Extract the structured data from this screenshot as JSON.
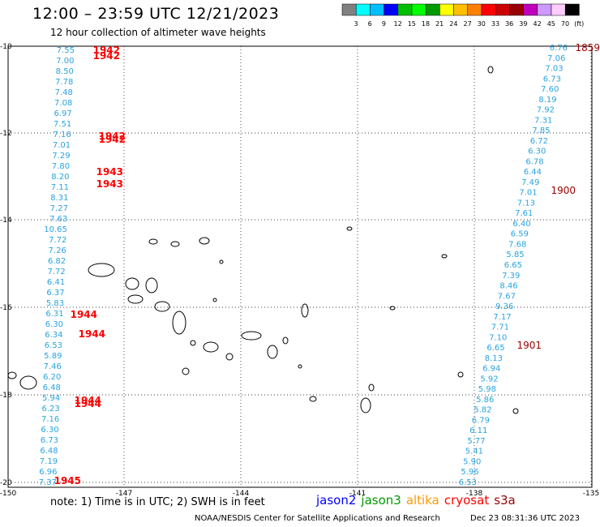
{
  "header": {
    "title": "12:00 – 23:59 UTC 12/21/2023",
    "subtitle": "12 hour collection of altimeter wave heights"
  },
  "colorbar": {
    "colors": [
      "#808080",
      "#00ffff",
      "#00bfff",
      "#0000ff",
      "#00bf00",
      "#00ff00",
      "#009900",
      "#ffff00",
      "#ffbf00",
      "#ff7f00",
      "#ff0000",
      "#cc0000",
      "#990000",
      "#bf00bf",
      "#cc99ff",
      "#ffccff",
      "#000000"
    ],
    "labels": [
      "3",
      "6",
      "9",
      "12",
      "15",
      "18",
      "21",
      "24",
      "27",
      "30",
      "33",
      "36",
      "39",
      "42",
      "45",
      "70",
      "(ft)"
    ]
  },
  "axes": {
    "lat_labels": [
      "-10",
      "-12",
      "-14",
      "-16",
      "-18",
      "-20"
    ],
    "lon_labels": [
      "-150",
      "-147",
      "-144",
      "-141",
      "-138",
      "-135"
    ]
  },
  "track_left": {
    "color": "#29a3e0",
    "values": [
      "7.55",
      "7.00",
      "8.50",
      "7.78",
      "7.48",
      "7.08",
      "6.97",
      "7.51",
      "7.16",
      "7.01",
      "7.29",
      "7.80",
      "8.20",
      "7.11",
      "8.31",
      "7.27",
      "7.63",
      "10.65",
      "7.72",
      "7.26",
      "6.82",
      "7.72",
      "6.41",
      "6.37",
      "5.83",
      "6.31",
      "6.30",
      "6.34",
      "6.53",
      "5.89",
      "7.46",
      "6.20",
      "6.48",
      "5.94",
      "6.23",
      "7.16",
      "6.30",
      "6.73",
      "6.48",
      "7.19",
      "6.96",
      "7.37"
    ]
  },
  "track_right": {
    "color": "#29a3e0",
    "values": [
      "6.76",
      "7.06",
      "7.03",
      "6.73",
      "7.60",
      "8.19",
      "7.92",
      "7.31",
      "7.85",
      "6.72",
      "6.30",
      "6.78",
      "6.44",
      "7.49",
      "7.01",
      "7.13",
      "7.61",
      "6.40",
      "6.59",
      "7.68",
      "5.85",
      "6.65",
      "7.39",
      "8.46",
      "7.67",
      "9.36",
      "7.17",
      "7.71",
      "7.10",
      "6.65",
      "8.13",
      "6.94",
      "5.92",
      "5.98",
      "5.86",
      "5.82",
      "6.79",
      "6.11",
      "5.77",
      "5.41",
      "5.90",
      "5.96",
      "6.53"
    ]
  },
  "time_labels": {
    "left": [
      "1942",
      "1942",
      "1942",
      "1942",
      "1943",
      "1943",
      "1944",
      "1944",
      "1944",
      "1944",
      "1945"
    ],
    "right": [
      "1859",
      "1900",
      "1901"
    ]
  },
  "note": "note:  1) Time is in UTC;  2) SWH is in feet",
  "legend": [
    {
      "name": "jason2",
      "color": "#0000ff"
    },
    {
      "name": "jason3",
      "color": "#009900"
    },
    {
      "name": "altika",
      "color": "#ff9900"
    },
    {
      "name": "cryosat",
      "color": "#ff0000"
    },
    {
      "name": "s3a",
      "color": "#990000"
    }
  ],
  "footer": {
    "credit": "NOAA/NESDIS Center for Satellite Applications and Research",
    "timestamp": "Dec 23 08:31:36 UTC 2023"
  }
}
